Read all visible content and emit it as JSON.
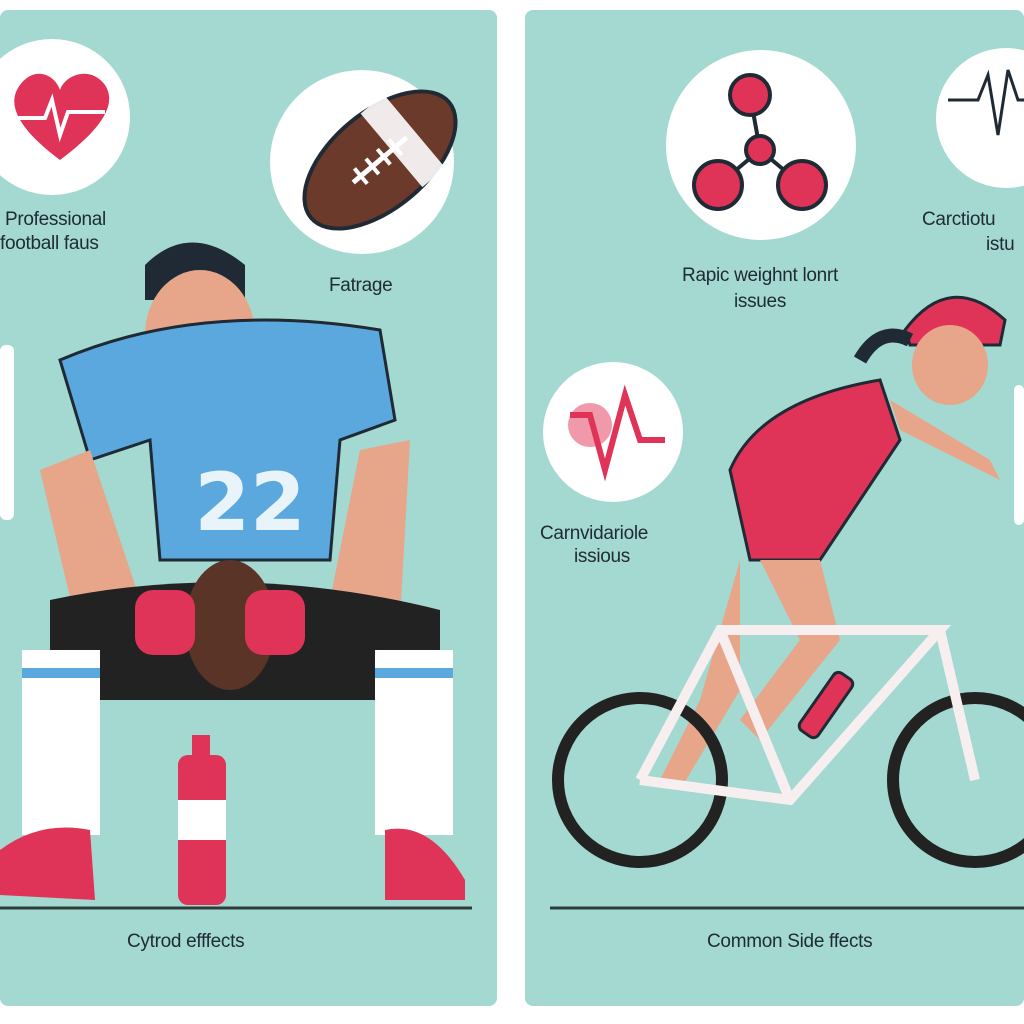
{
  "left_panel": {
    "labels": {
      "professional": [
        "Professional",
        "football faus"
      ],
      "fatigue": "Fatrage",
      "footer": "Cytrod efffects"
    },
    "player_number": "22",
    "icons": [
      "heart-pulse-icon",
      "football-icon",
      "water-bottle-icon"
    ]
  },
  "right_panel": {
    "labels": {
      "weight": [
        "Rapic weighnt lonrt",
        "issues"
      ],
      "cardio_top": [
        "Carctiotu",
        "istu"
      ],
      "cardio_mid": [
        "Carnvidariole",
        "issious"
      ],
      "footer": "Common Side ffects"
    },
    "icons": [
      "molecule-icon",
      "heartbeat-line-icon",
      "pulse-wave-icon",
      "bicycle-icon"
    ]
  },
  "colors": {
    "panel": "#a3d9d0",
    "accent_red": "#e03358",
    "jersey_blue": "#5aa8de",
    "text": "#1f2a35"
  }
}
